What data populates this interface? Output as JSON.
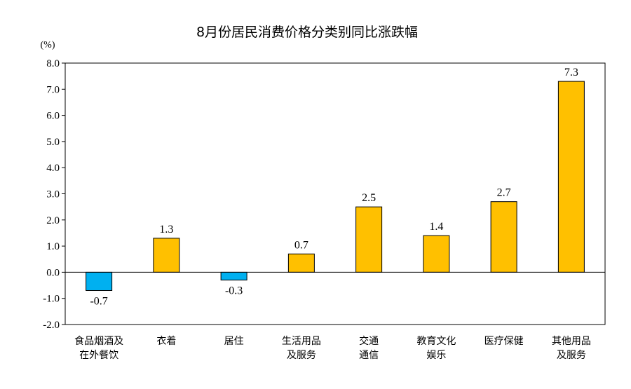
{
  "chart_data": {
    "type": "bar",
    "title": "8月份居民消费价格分类别同比涨跌幅",
    "unit_label": "(%)",
    "ylim": [
      -2.0,
      8.0
    ],
    "yticks": [
      "8.0",
      "7.0",
      "6.0",
      "5.0",
      "4.0",
      "3.0",
      "2.0",
      "1.0",
      "0.0",
      "-1.0",
      "-2.0"
    ],
    "categories": [
      [
        "食品烟酒及",
        "在外餐饮"
      ],
      [
        "衣着"
      ],
      [
        "居住"
      ],
      [
        "生活用品",
        "及服务"
      ],
      [
        "交通",
        "通信"
      ],
      [
        "教育文化",
        "娱乐"
      ],
      [
        "医疗保健"
      ],
      [
        "其他用品",
        "及服务"
      ]
    ],
    "values": [
      -0.7,
      1.3,
      -0.3,
      0.7,
      2.5,
      1.4,
      2.7,
      7.3
    ],
    "value_labels": [
      "-0.7",
      "1.3",
      "-0.3",
      "0.7",
      "2.5",
      "1.4",
      "2.7",
      "7.3"
    ],
    "colors": {
      "positive": "#FFC000",
      "negative": "#00B0F0",
      "outline": "#000000"
    },
    "grid": false
  }
}
